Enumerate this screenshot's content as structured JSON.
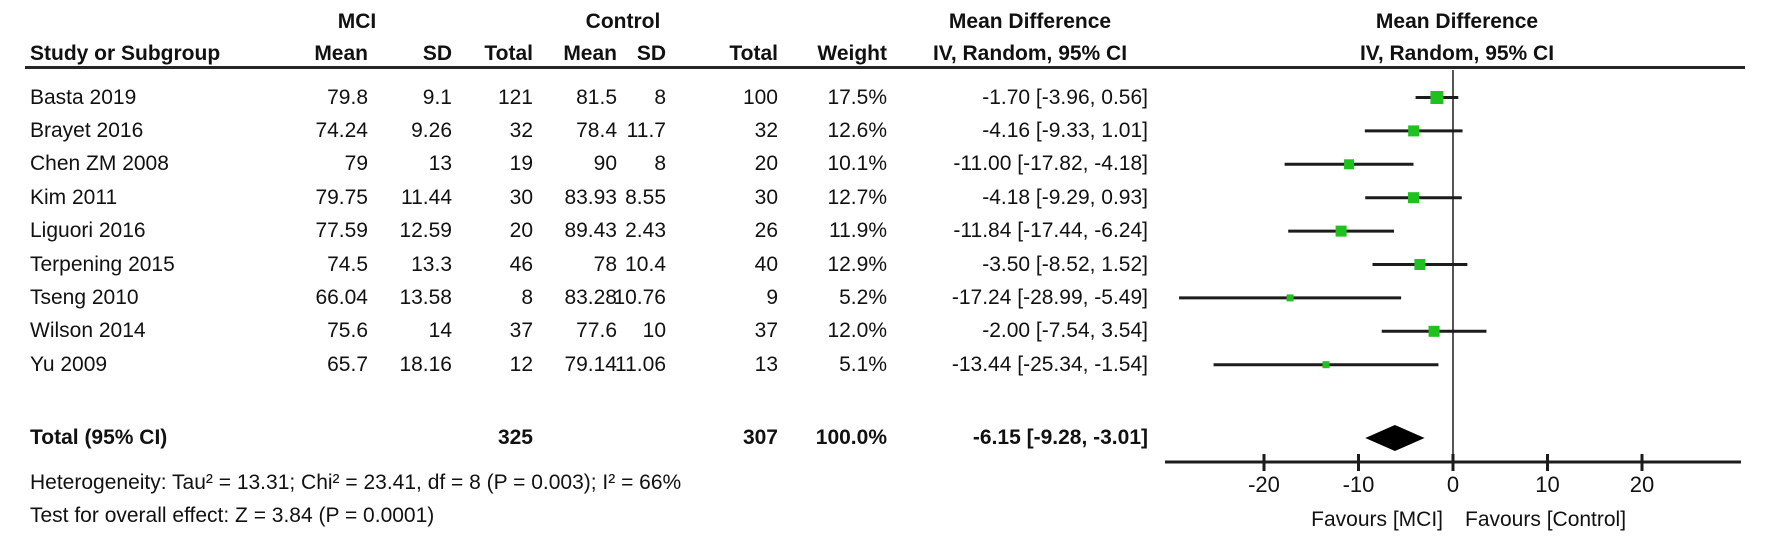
{
  "table": {
    "study_col": "Study or Subgroup",
    "mci_group": "MCI",
    "control_group": "Control",
    "md_header_line1": "Mean Difference",
    "md_header_line2": "IV, Random, 95% CI",
    "plot_header_line1": "Mean Difference",
    "plot_header_line2": "IV, Random, 95% CI",
    "mci_cols": {
      "mean": "Mean",
      "sd": "SD",
      "total": "Total"
    },
    "control_cols": {
      "mean": "Mean",
      "sd": "SD",
      "total": "Total"
    },
    "weight_col": "Weight"
  },
  "chart_data": {
    "type": "forest",
    "effect_measure": "Mean Difference, IV, Random, 95% CI",
    "studies": [
      {
        "name": "Basta 2019",
        "mci": [
          "79.8",
          "9.1",
          "121"
        ],
        "control": [
          "81.5",
          "8",
          "100"
        ],
        "weight": "17.5%",
        "weight_val": 17.5,
        "ci_text": "-1.70 [-3.96, 0.56]",
        "md": -1.7,
        "lo": -3.96,
        "hi": 0.56
      },
      {
        "name": "Brayet 2016",
        "mci": [
          "74.24",
          "9.26",
          "32"
        ],
        "control": [
          "78.4",
          "11.7",
          "32"
        ],
        "weight": "12.6%",
        "weight_val": 12.6,
        "ci_text": "-4.16 [-9.33, 1.01]",
        "md": -4.16,
        "lo": -9.33,
        "hi": 1.01
      },
      {
        "name": "Chen ZM 2008",
        "mci": [
          "79",
          "13",
          "19"
        ],
        "control": [
          "90",
          "8",
          "20"
        ],
        "weight": "10.1%",
        "weight_val": 10.1,
        "ci_text": "-11.00 [-17.82, -4.18]",
        "md": -11.0,
        "lo": -17.82,
        "hi": -4.18
      },
      {
        "name": "Kim 2011",
        "mci": [
          "79.75",
          "11.44",
          "30"
        ],
        "control": [
          "83.93",
          "8.55",
          "30"
        ],
        "weight": "12.7%",
        "weight_val": 12.7,
        "ci_text": "-4.18 [-9.29, 0.93]",
        "md": -4.18,
        "lo": -9.29,
        "hi": 0.93
      },
      {
        "name": "Liguori 2016",
        "mci": [
          "77.59",
          "12.59",
          "20"
        ],
        "control": [
          "89.43",
          "2.43",
          "26"
        ],
        "weight": "11.9%",
        "weight_val": 11.9,
        "ci_text": "-11.84 [-17.44, -6.24]",
        "md": -11.84,
        "lo": -17.44,
        "hi": -6.24
      },
      {
        "name": "Terpening 2015",
        "mci": [
          "74.5",
          "13.3",
          "46"
        ],
        "control": [
          "78",
          "10.4",
          "40"
        ],
        "weight": "12.9%",
        "weight_val": 12.9,
        "ci_text": "-3.50 [-8.52, 1.52]",
        "md": -3.5,
        "lo": -8.52,
        "hi": 1.52
      },
      {
        "name": "Tseng 2010",
        "mci": [
          "66.04",
          "13.58",
          "8"
        ],
        "control": [
          "83.28",
          "10.76",
          "9"
        ],
        "weight": "5.2%",
        "weight_val": 5.2,
        "ci_text": "-17.24 [-28.99, -5.49]",
        "md": -17.24,
        "lo": -28.99,
        "hi": -5.49
      },
      {
        "name": "Wilson 2014",
        "mci": [
          "75.6",
          "14",
          "37"
        ],
        "control": [
          "77.6",
          "10",
          "37"
        ],
        "weight": "12.0%",
        "weight_val": 12.0,
        "ci_text": "-2.00 [-7.54, 3.54]",
        "md": -2.0,
        "lo": -7.54,
        "hi": 3.54
      },
      {
        "name": "Yu 2009",
        "mci": [
          "65.7",
          "18.16",
          "12"
        ],
        "control": [
          "79.14",
          "11.06",
          "13"
        ],
        "weight": "5.1%",
        "weight_val": 5.1,
        "ci_text": "-13.44 [-25.34, -1.54]",
        "md": -13.44,
        "lo": -25.34,
        "hi": -1.54
      }
    ],
    "total": {
      "label": "Total (95% CI)",
      "mci_total": "325",
      "control_total": "307",
      "weight": "100.0%",
      "ci_text": "-6.15 [-9.28, -3.01]",
      "md": -6.15,
      "lo": -9.28,
      "hi": -3.01
    },
    "footnotes": {
      "heterogeneity": "Heterogeneity: Tau² = 13.31; Chi² = 23.41, df = 8 (P = 0.003); I² = 66%",
      "overall_effect": "Test for overall effect: Z = 3.84 (P = 0.0001)"
    },
    "axis": {
      "min": -30.5,
      "max": 30.5,
      "tick_values": [
        -20,
        -10,
        0,
        10,
        20
      ],
      "tick_labels": [
        "-20",
        "-10",
        "0",
        "10",
        "20"
      ],
      "favours_left": "Favours [MCI]",
      "favours_right": "Favours [Control]"
    },
    "colors": {
      "marker_green": "#1fc11f",
      "diamond": "#000000",
      "line": "#1c1c1c",
      "zero_line": "#555555"
    }
  }
}
